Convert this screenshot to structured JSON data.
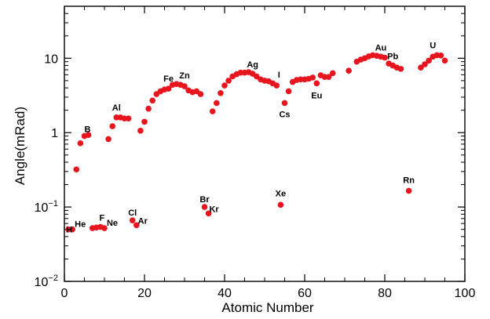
{
  "chart_data": {
    "type": "scatter",
    "xlabel": "Atomic Number",
    "ylabel": "Angle(mRad)",
    "xlim": [
      0,
      100
    ],
    "ylim": [
      0.01,
      50
    ],
    "yscale": "log",
    "grid": false,
    "marker_color": "#e8141e",
    "x_ticks": [
      {
        "value": 0,
        "label": "0"
      },
      {
        "value": 20,
        "label": "20"
      },
      {
        "value": 40,
        "label": "40"
      },
      {
        "value": 60,
        "label": "60"
      },
      {
        "value": 80,
        "label": "80"
      },
      {
        "value": 100,
        "label": "100"
      }
    ],
    "y_ticks": [
      {
        "value": 0.01,
        "base": "10",
        "exp": "−2"
      },
      {
        "value": 0.1,
        "base": "10",
        "exp": "−1"
      },
      {
        "value": 1,
        "base": "1",
        "exp": ""
      },
      {
        "value": 10,
        "base": "10",
        "exp": ""
      }
    ],
    "points": [
      {
        "x": 1,
        "y": 0.05
      },
      {
        "x": 2,
        "y": 0.05
      },
      {
        "x": 3,
        "y": 0.32
      },
      {
        "x": 4,
        "y": 0.72
      },
      {
        "x": 5,
        "y": 0.9
      },
      {
        "x": 6,
        "y": 0.93
      },
      {
        "x": 7,
        "y": 0.052
      },
      {
        "x": 8,
        "y": 0.053
      },
      {
        "x": 9,
        "y": 0.054
      },
      {
        "x": 10,
        "y": 0.052
      },
      {
        "x": 11,
        "y": 0.82
      },
      {
        "x": 12,
        "y": 1.22
      },
      {
        "x": 13,
        "y": 1.6
      },
      {
        "x": 14,
        "y": 1.6
      },
      {
        "x": 15,
        "y": 1.55
      },
      {
        "x": 16,
        "y": 1.55
      },
      {
        "x": 17,
        "y": 0.066
      },
      {
        "x": 18,
        "y": 0.057
      },
      {
        "x": 19,
        "y": 1.06
      },
      {
        "x": 20,
        "y": 1.4
      },
      {
        "x": 21,
        "y": 2.1
      },
      {
        "x": 22,
        "y": 2.7
      },
      {
        "x": 23,
        "y": 3.3
      },
      {
        "x": 24,
        "y": 3.6
      },
      {
        "x": 25,
        "y": 3.8
      },
      {
        "x": 26,
        "y": 3.9
      },
      {
        "x": 27,
        "y": 4.4
      },
      {
        "x": 28,
        "y": 4.5
      },
      {
        "x": 29,
        "y": 4.4
      },
      {
        "x": 30,
        "y": 4.2
      },
      {
        "x": 31,
        "y": 3.7
      },
      {
        "x": 32,
        "y": 3.5
      },
      {
        "x": 33,
        "y": 3.6
      },
      {
        "x": 34,
        "y": 3.3
      },
      {
        "x": 35,
        "y": 0.1
      },
      {
        "x": 36,
        "y": 0.082
      },
      {
        "x": 37,
        "y": 1.93
      },
      {
        "x": 38,
        "y": 2.5
      },
      {
        "x": 39,
        "y": 3.4
      },
      {
        "x": 40,
        "y": 4.3
      },
      {
        "x": 41,
        "y": 5.0
      },
      {
        "x": 42,
        "y": 5.7
      },
      {
        "x": 43,
        "y": 6.1
      },
      {
        "x": 44,
        "y": 6.4
      },
      {
        "x": 45,
        "y": 6.4
      },
      {
        "x": 46,
        "y": 6.5
      },
      {
        "x": 47,
        "y": 6.2
      },
      {
        "x": 48,
        "y": 5.7
      },
      {
        "x": 49,
        "y": 5.2
      },
      {
        "x": 50,
        "y": 5.0
      },
      {
        "x": 51,
        "y": 4.9
      },
      {
        "x": 52,
        "y": 4.6
      },
      {
        "x": 53,
        "y": 4.3
      },
      {
        "x": 54,
        "y": 0.107
      },
      {
        "x": 55,
        "y": 2.5
      },
      {
        "x": 56,
        "y": 3.6
      },
      {
        "x": 57,
        "y": 4.8
      },
      {
        "x": 58,
        "y": 5.1
      },
      {
        "x": 59,
        "y": 5.2
      },
      {
        "x": 60,
        "y": 5.2
      },
      {
        "x": 61,
        "y": 5.3
      },
      {
        "x": 62,
        "y": 5.5
      },
      {
        "x": 63,
        "y": 4.6
      },
      {
        "x": 64,
        "y": 5.9
      },
      {
        "x": 65,
        "y": 5.6
      },
      {
        "x": 66,
        "y": 5.6
      },
      {
        "x": 67,
        "y": 6.3
      },
      {
        "x": 71,
        "y": 6.8
      },
      {
        "x": 73,
        "y": 9.0
      },
      {
        "x": 74,
        "y": 9.6
      },
      {
        "x": 75,
        "y": 10.0
      },
      {
        "x": 76,
        "y": 10.6
      },
      {
        "x": 77,
        "y": 11.0
      },
      {
        "x": 78,
        "y": 10.8
      },
      {
        "x": 79,
        "y": 10.5
      },
      {
        "x": 80,
        "y": 10.2
      },
      {
        "x": 81,
        "y": 8.5
      },
      {
        "x": 82,
        "y": 8.0
      },
      {
        "x": 83,
        "y": 7.5
      },
      {
        "x": 84,
        "y": 7.2
      },
      {
        "x": 86,
        "y": 0.165
      },
      {
        "x": 89,
        "y": 7.5
      },
      {
        "x": 90,
        "y": 8.3
      },
      {
        "x": 91,
        "y": 9.3
      },
      {
        "x": 92,
        "y": 10.5
      },
      {
        "x": 93,
        "y": 11.0
      },
      {
        "x": 94,
        "y": 10.9
      },
      {
        "x": 95,
        "y": 9.3
      }
    ],
    "annotations": [
      {
        "label": "H",
        "x": 1,
        "y": 0.05
      },
      {
        "label": "He",
        "x": 2,
        "y": 0.05
      },
      {
        "label": "B",
        "x": 5,
        "y": 0.9
      },
      {
        "label": "F",
        "x": 9,
        "y": 0.054
      },
      {
        "label": "Ne",
        "x": 10,
        "y": 0.052
      },
      {
        "label": "Al",
        "x": 13,
        "y": 1.6
      },
      {
        "label": "Cl",
        "x": 17,
        "y": 0.066
      },
      {
        "label": "Ar",
        "x": 18,
        "y": 0.057
      },
      {
        "label": "Fe",
        "x": 26,
        "y": 3.9
      },
      {
        "label": "Zn",
        "x": 30,
        "y": 4.2
      },
      {
        "label": "Br",
        "x": 35,
        "y": 0.1
      },
      {
        "label": "Kr",
        "x": 36,
        "y": 0.082
      },
      {
        "label": "Ag",
        "x": 47,
        "y": 6.2
      },
      {
        "label": "I",
        "x": 53,
        "y": 4.3
      },
      {
        "label": "Xe",
        "x": 54,
        "y": 0.107
      },
      {
        "label": "Cs",
        "x": 55,
        "y": 2.5
      },
      {
        "label": "Eu",
        "x": 63,
        "y": 4.6
      },
      {
        "label": "Au",
        "x": 79,
        "y": 10.5
      },
      {
        "label": "Pb",
        "x": 82,
        "y": 8.0
      },
      {
        "label": "Rn",
        "x": 86,
        "y": 0.165
      },
      {
        "label": "U",
        "x": 92,
        "y": 10.5
      }
    ]
  }
}
